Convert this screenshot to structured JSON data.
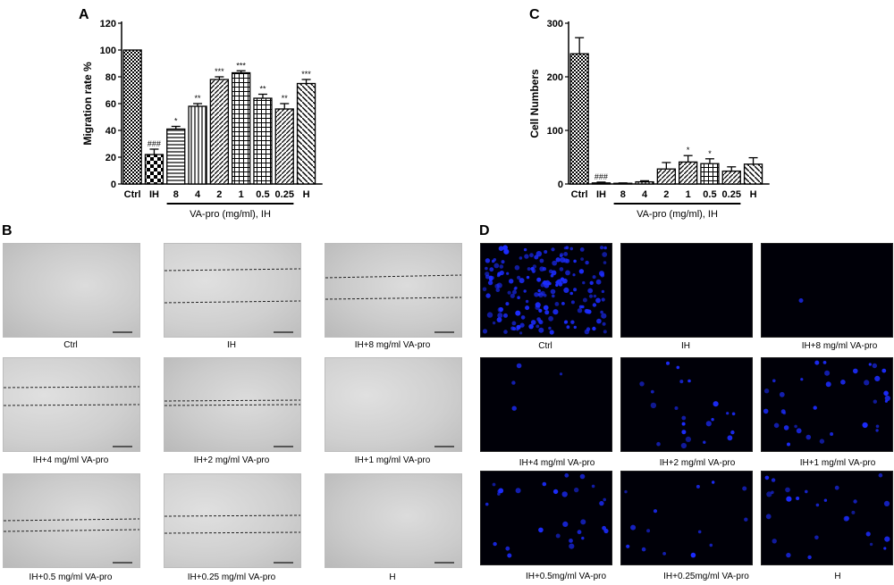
{
  "panels": {
    "a": "A",
    "b": "B",
    "c": "C",
    "d": "D"
  },
  "chart_data": [
    {
      "type": "bar",
      "panel": "A",
      "categories": [
        "Ctrl",
        "IH",
        "8",
        "4",
        "2",
        "1",
        "0.5",
        "0.25",
        "H"
      ],
      "values": [
        100,
        22,
        41,
        58,
        78,
        83,
        64,
        56,
        75
      ],
      "errors": [
        0,
        4,
        2,
        2,
        2,
        1.5,
        3,
        4,
        3
      ],
      "annotations": [
        "",
        "###",
        "*",
        "**",
        "***",
        "***",
        "**",
        "**",
        "***"
      ],
      "patterns": [
        "check",
        "diamond",
        "hlines",
        "vlines",
        "diag",
        "grid",
        "grid",
        "diag",
        "backdiag"
      ],
      "ylabel": "Migration rate %",
      "xgroup_label": "VA-pro (mg/ml), IH",
      "ylim": [
        0,
        120
      ],
      "yticks": [
        0,
        20,
        40,
        60,
        80,
        100,
        120
      ]
    },
    {
      "type": "bar",
      "panel": "C",
      "categories": [
        "Ctrl",
        "IH",
        "8",
        "4",
        "2",
        "1",
        "0.5",
        "0.25",
        "H"
      ],
      "values": [
        243,
        2,
        1,
        4,
        28,
        41,
        38,
        24,
        37
      ],
      "errors": [
        30,
        1.5,
        1,
        2,
        12,
        12,
        9,
        8,
        12
      ],
      "annotations": [
        "",
        "###",
        "",
        "",
        "",
        "*",
        "*",
        "",
        ""
      ],
      "patterns": [
        "check",
        "diamond",
        "hlines",
        "vlines",
        "diag",
        "diag",
        "grid",
        "diag",
        "backdiag"
      ],
      "ylabel": "Cell Numbers",
      "xgroup_label": "VA-pro (mg/ml), IH",
      "ylim": [
        0,
        300
      ],
      "yticks": [
        0,
        100,
        200,
        300
      ]
    }
  ],
  "panel_b": {
    "captions": [
      "Ctrl",
      "IH",
      "IH+8 mg/ml VA-pro",
      "IH+4 mg/ml VA-pro",
      "IH+2 mg/ml VA-pro",
      "IH+1 mg/ml VA-pro",
      "IH+0.5 mg/ml VA-pro",
      "IH+0.25 mg/ml VA-pro",
      "H"
    ]
  },
  "panel_d": {
    "captions": [
      "Ctrl",
      "IH",
      "IH+8 mg/ml VA-pro",
      "IH+4 mg/ml VA-pro",
      "IH+2 mg/ml VA-pro",
      "IH+1 mg/ml VA-pro",
      "IH+0.5mg/ml VA-pro",
      "IH+0.25mg/ml VA-pro",
      "H"
    ],
    "cell_counts": [
      180,
      0,
      1,
      4,
      22,
      34,
      28,
      14,
      26
    ]
  },
  "colors": {
    "axis": "#000000",
    "nucleus": "#1c2cff",
    "field_dark": "#000008"
  }
}
